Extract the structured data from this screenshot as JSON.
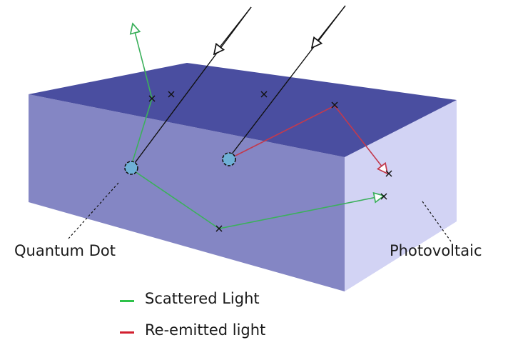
{
  "labels": {
    "quantum_dot": "Quantum Dot",
    "photovoltaic": "Photovoltaic"
  },
  "legend": [
    {
      "label": "Scattered Light",
      "color": "#2ec24a"
    },
    {
      "label": "Re-emitted light",
      "color": "#d21f2f"
    }
  ],
  "colors": {
    "slab_top": "#4a4ea0",
    "slab_front": "#8486c4",
    "slab_side": "#d2d3f4",
    "incident_ray": "#111111",
    "scattered_ray": "#3cb05c",
    "reemitted_ray": "#c23a4e",
    "quantum_dot_fill": "#6fb0d6"
  }
}
